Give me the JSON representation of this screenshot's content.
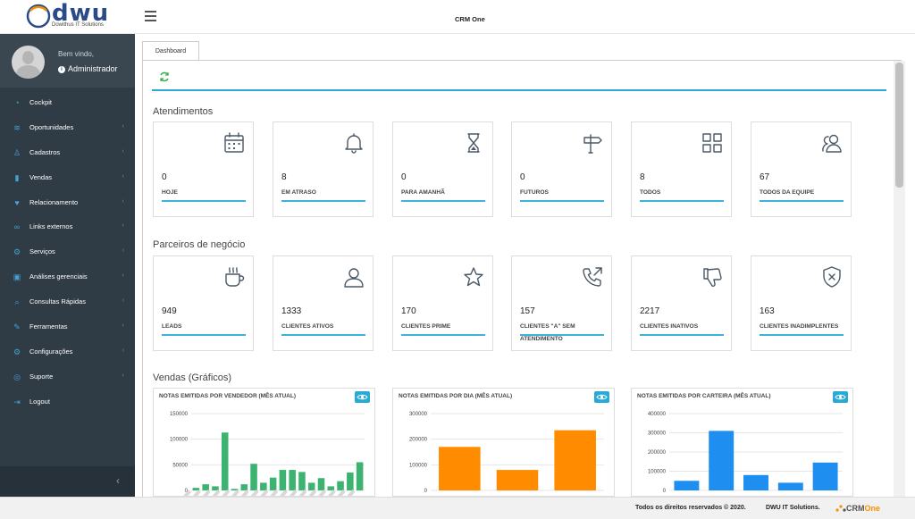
{
  "header": {
    "logo_text": "dwu",
    "logo_subtitle": "Dowithus IT Solutions",
    "app_title": "CRM One"
  },
  "user": {
    "welcome": "Bem vindo,",
    "name": "Administrador"
  },
  "sidebar": {
    "items": [
      {
        "label": "Cockpit",
        "icon": "dashboard-icon",
        "chevron": false
      },
      {
        "label": "Oportunidades",
        "icon": "layers-icon",
        "chevron": true
      },
      {
        "label": "Cadastros",
        "icon": "user-icon",
        "chevron": true
      },
      {
        "label": "Vendas",
        "icon": "bar-chart-icon",
        "chevron": true
      },
      {
        "label": "Relacionamento",
        "icon": "heart-icon",
        "chevron": true
      },
      {
        "label": "Links externos",
        "icon": "link-icon",
        "chevron": true
      },
      {
        "label": "Serviços",
        "icon": "gear-icon",
        "chevron": true
      },
      {
        "label": "Análises gerenciais",
        "icon": "briefcase-icon",
        "chevron": true
      },
      {
        "label": "Consultas Rápidas",
        "icon": "search-icon",
        "chevron": true
      },
      {
        "label": "Ferramentas",
        "icon": "wrench-icon",
        "chevron": true
      },
      {
        "label": "Configurações",
        "icon": "settings-icon",
        "chevron": true
      },
      {
        "label": "Suporte",
        "icon": "lifebuoy-icon",
        "chevron": true
      },
      {
        "label": "Logout",
        "icon": "logout-icon",
        "chevron": false
      }
    ]
  },
  "tabs": {
    "active": "Dashboard"
  },
  "atendimentos": {
    "title": "Atendimentos",
    "cards": [
      {
        "value": "0",
        "label": "HOJE",
        "icon": "calendar-icon"
      },
      {
        "value": "8",
        "label": "EM ATRASO",
        "icon": "bell-icon"
      },
      {
        "value": "0",
        "label": "PARA AMANHÃ",
        "icon": "hourglass-icon"
      },
      {
        "value": "0",
        "label": "FUTUROS",
        "icon": "signpost-icon"
      },
      {
        "value": "8",
        "label": "TODOS",
        "icon": "grid-icon"
      },
      {
        "value": "67",
        "label": "TODOS DA EQUIPE",
        "icon": "users-icon"
      }
    ]
  },
  "parceiros": {
    "title": "Parceiros de negócio",
    "cards": [
      {
        "value": "949",
        "label": "LEADS",
        "icon": "coffee-icon"
      },
      {
        "value": "1333",
        "label": "CLIENTES ATIVOS",
        "icon": "user-icon"
      },
      {
        "value": "170",
        "label": "CLIENTES PRIME",
        "icon": "star-icon"
      },
      {
        "value": "157",
        "label": "CLIENTES \"A\" SEM ATENDIMENTO",
        "icon": "phone-outgoing-icon"
      },
      {
        "value": "2217",
        "label": "CLIENTES INATIVOS",
        "icon": "thumbs-down-icon"
      },
      {
        "value": "163",
        "label": "CLIENTES INADIMPLENTES",
        "icon": "shield-x-icon"
      }
    ]
  },
  "vendas": {
    "title": "Vendas (Gráficos)"
  },
  "chart_data": [
    {
      "type": "bar",
      "title": "NOTAS EMITIDAS POR VENDEDOR (MÊS ATUAL)",
      "ylim": [
        0,
        150000
      ],
      "yticks": [
        "150000",
        "100000",
        "50000",
        "0"
      ],
      "values": [
        5000,
        12000,
        8000,
        113000,
        3000,
        12000,
        52000,
        15000,
        25000,
        40000,
        40000,
        36000,
        15000,
        24000,
        8000,
        18000,
        35000,
        55000
      ],
      "color": "#3cb371",
      "categories_blurred": true
    },
    {
      "type": "bar",
      "title": "NOTAS EMITIDAS POR DIA (MÊS ATUAL)",
      "ylim": [
        0,
        300000
      ],
      "yticks": [
        "300000",
        "200000",
        "100000",
        "0"
      ],
      "values": [
        170000,
        80000,
        235000
      ],
      "color": "#ff8c00"
    },
    {
      "type": "bar",
      "title": "NOTAS EMITIDAS POR CARTEIRA (MÊS ATUAL)",
      "ylim": [
        0,
        400000
      ],
      "yticks": [
        "400000",
        "300000",
        "200000",
        "100000",
        "0"
      ],
      "values": [
        50000,
        310000,
        80000,
        40000,
        145000
      ],
      "color": "#1e8ff0"
    }
  ],
  "footer": {
    "rights": "Todos os direitos reservados © 2020.",
    "company": "DWU IT Solutions.",
    "brand_crm": "CRM",
    "brand_one": "One"
  }
}
